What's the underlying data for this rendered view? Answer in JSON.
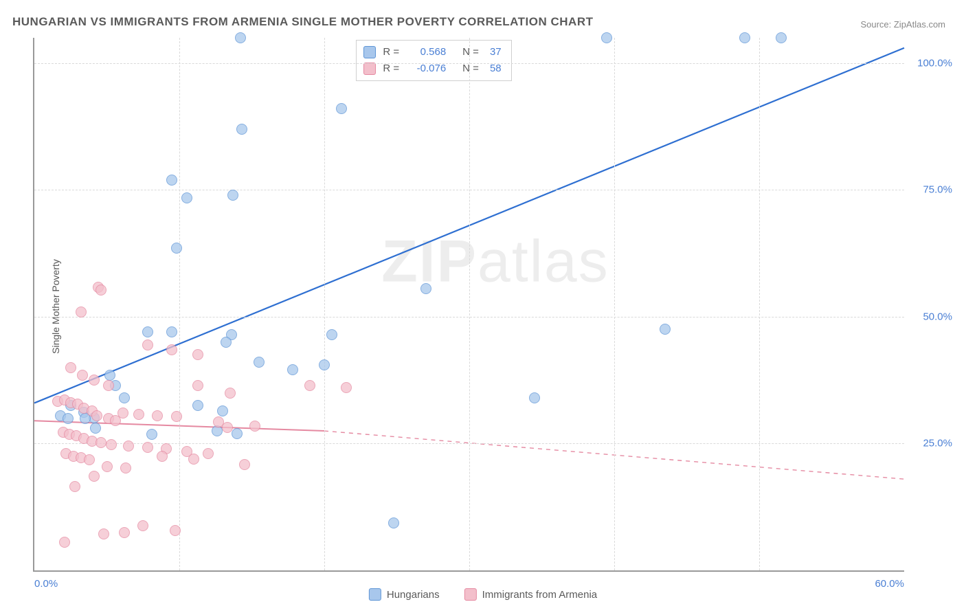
{
  "title": "HUNGARIAN VS IMMIGRANTS FROM ARMENIA SINGLE MOTHER POVERTY CORRELATION CHART",
  "source_label": "Source: ZipAtlas.com",
  "ylabel": "Single Mother Poverty",
  "watermark": {
    "bold": "ZIP",
    "thin": "atlas"
  },
  "chart": {
    "type": "scatter",
    "xlim": [
      0,
      60
    ],
    "ylim": [
      0,
      105
    ],
    "xticks": [
      0,
      60
    ],
    "xtick_labels": [
      "0.0%",
      "60.0%"
    ],
    "yticks": [
      25,
      50,
      75,
      100
    ],
    "ytick_labels": [
      "25.0%",
      "50.0%",
      "75.0%",
      "100.0%"
    ],
    "grid_color": "#d9d9d9",
    "axis_color": "#999999",
    "tick_color": "#4a7fd4",
    "marker_radius": 8,
    "title_fontsize": 17,
    "label_fontsize": 14,
    "tick_fontsize": 15
  },
  "series": [
    {
      "name": "Hungarians",
      "color_fill": "#a8c7ec",
      "color_stroke": "#5e95d6",
      "line_color": "#2e6fd1",
      "line_width": 2.2,
      "r": 0.568,
      "n": 37,
      "reg_start": [
        0,
        33
      ],
      "reg_solid_end": [
        60,
        103
      ],
      "reg_dash_end": [
        60,
        103
      ],
      "points": [
        [
          14.2,
          105
        ],
        [
          39.5,
          105
        ],
        [
          49,
          105
        ],
        [
          51.5,
          105
        ],
        [
          21.2,
          91
        ],
        [
          14.3,
          87
        ],
        [
          9.5,
          77
        ],
        [
          10.5,
          73.5
        ],
        [
          13.7,
          74
        ],
        [
          9.8,
          63.5
        ],
        [
          27,
          55.5
        ],
        [
          7.8,
          47
        ],
        [
          9.5,
          47
        ],
        [
          13.6,
          46.5
        ],
        [
          20.5,
          46.5
        ],
        [
          13.2,
          45
        ],
        [
          43.5,
          47.5
        ],
        [
          15.5,
          41
        ],
        [
          17.8,
          39.5
        ],
        [
          20,
          40.5
        ],
        [
          5.2,
          38.5
        ],
        [
          5.6,
          36.5
        ],
        [
          6.2,
          34
        ],
        [
          34.5,
          34
        ],
        [
          11.3,
          32.5
        ],
        [
          13,
          31.5
        ],
        [
          8.1,
          26.8
        ],
        [
          12.6,
          27.5
        ],
        [
          14,
          27
        ],
        [
          3.4,
          31.2
        ],
        [
          4.1,
          30.1
        ],
        [
          24.8,
          9.3
        ],
        [
          1.8,
          30.5
        ],
        [
          2.3,
          30
        ],
        [
          2.5,
          32.5
        ],
        [
          3.5,
          30
        ],
        [
          4.2,
          28
        ]
      ]
    },
    {
      "name": "Immigrants from Armenia",
      "color_fill": "#f3bfcb",
      "color_stroke": "#e589a1",
      "line_color": "#e589a1",
      "line_width": 2,
      "r": -0.076,
      "n": 58,
      "reg_start": [
        0,
        29.5
      ],
      "reg_solid_end": [
        20,
        27.5
      ],
      "reg_dash_end": [
        60,
        18
      ],
      "points": [
        [
          4.4,
          55.8
        ],
        [
          4.6,
          55.3
        ],
        [
          3.2,
          51
        ],
        [
          7.8,
          44.5
        ],
        [
          9.5,
          43.5
        ],
        [
          11.3,
          42.5
        ],
        [
          2.5,
          40
        ],
        [
          3.3,
          38.5
        ],
        [
          4.1,
          37.5
        ],
        [
          5.1,
          36.5
        ],
        [
          11.3,
          36.5
        ],
        [
          13.5,
          35
        ],
        [
          19,
          36.5
        ],
        [
          21.5,
          36
        ],
        [
          1.6,
          33.3
        ],
        [
          2.1,
          33.6
        ],
        [
          2.5,
          33
        ],
        [
          3.0,
          32.8
        ],
        [
          3.4,
          32
        ],
        [
          4,
          31.5
        ],
        [
          4.3,
          30.5
        ],
        [
          5.1,
          30
        ],
        [
          5.6,
          29.5
        ],
        [
          6.1,
          31
        ],
        [
          7.2,
          30.8
        ],
        [
          8.5,
          30.5
        ],
        [
          9.8,
          30.3
        ],
        [
          12.7,
          29.3
        ],
        [
          13.3,
          28.2
        ],
        [
          15.2,
          28.5
        ],
        [
          2.0,
          27.2
        ],
        [
          2.4,
          26.8
        ],
        [
          2.9,
          26.5
        ],
        [
          3.4,
          26
        ],
        [
          4,
          25.5
        ],
        [
          4.6,
          25.2
        ],
        [
          5.3,
          24.8
        ],
        [
          6.5,
          24.5
        ],
        [
          7.8,
          24.2
        ],
        [
          9.1,
          24
        ],
        [
          10.5,
          23.5
        ],
        [
          12,
          23
        ],
        [
          2.2,
          23
        ],
        [
          2.7,
          22.5
        ],
        [
          3.2,
          22.2
        ],
        [
          3.8,
          21.8
        ],
        [
          5,
          20.5
        ],
        [
          6.3,
          20.2
        ],
        [
          8.8,
          22.5
        ],
        [
          11,
          22
        ],
        [
          14.5,
          20.8
        ],
        [
          2.8,
          16.5
        ],
        [
          4.1,
          18.5
        ],
        [
          4.8,
          7.2
        ],
        [
          6.2,
          7.5
        ],
        [
          7.5,
          8.8
        ],
        [
          9.7,
          7.8
        ],
        [
          2.1,
          5.5
        ]
      ]
    }
  ],
  "stats_legend": {
    "r_prefix": "R",
    "n_prefix": "N",
    "equals": "="
  },
  "bottom_legend": [
    {
      "label": "Hungarians",
      "fill": "#a8c7ec",
      "stroke": "#5e95d6"
    },
    {
      "label": "Immigrants from Armenia",
      "fill": "#f3bfcb",
      "stroke": "#e589a1"
    }
  ]
}
